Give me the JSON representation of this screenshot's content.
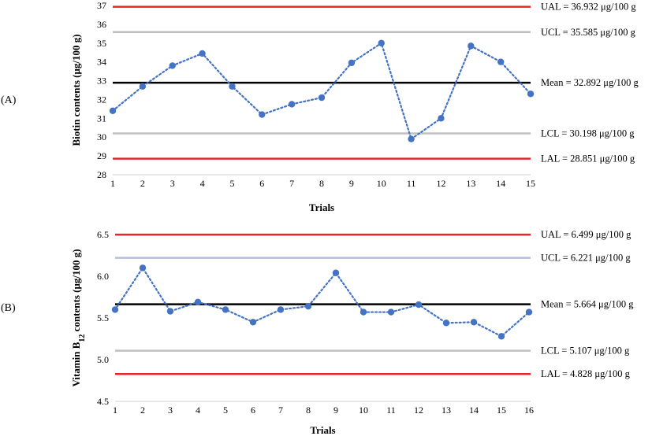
{
  "chart_data": [
    {
      "type": "line",
      "panel_label": "(A)",
      "xlabel": "Trials",
      "ylabel": "Biotin contents (μg/100 g)",
      "ylim": [
        28,
        37
      ],
      "yticks": [
        "28",
        "29",
        "30",
        "31",
        "32",
        "33",
        "34",
        "35",
        "36",
        "37"
      ],
      "x": [
        1,
        2,
        3,
        4,
        5,
        6,
        7,
        8,
        9,
        10,
        11,
        12,
        13,
        14,
        15
      ],
      "xticks": [
        "1",
        "2",
        "3",
        "4",
        "5",
        "6",
        "7",
        "8",
        "9",
        "10",
        "11",
        "12",
        "13",
        "14",
        "15"
      ],
      "values": [
        31.4,
        32.7,
        33.8,
        34.45,
        32.7,
        31.2,
        31.75,
        32.1,
        33.95,
        35.0,
        29.9,
        31.0,
        34.85,
        34.0,
        32.3
      ],
      "series_color": "#4472c4",
      "reference_lines": [
        {
          "label": "UAL = 36.932 μg/100 g",
          "value": 36.932,
          "color": "#e8262a"
        },
        {
          "label": "UCL = 35.585 μg/100 g",
          "value": 35.585,
          "color": "#bfbfbf"
        },
        {
          "label": "Mean = 32.892 μg/100 g",
          "value": 32.892,
          "color": "#000000"
        },
        {
          "label": "LCL = 30.198 μg/100 g",
          "value": 30.198,
          "color": "#bfbfbf"
        },
        {
          "label": "LAL = 28.851 μg/100 g",
          "value": 28.851,
          "color": "#e8262a"
        }
      ]
    },
    {
      "type": "line",
      "panel_label": "(B)",
      "xlabel": "Trials",
      "ylabel": {
        "prefix": "Vitamin B",
        "sub": "12",
        "suffix": " contents (μg/100 g)"
      },
      "ylim": [
        4.5,
        6.5
      ],
      "yticks": [
        "4.5",
        "5.0",
        "5.5",
        "6.0",
        "6.5"
      ],
      "x": [
        1,
        2,
        3,
        4,
        5,
        6,
        7,
        8,
        9,
        10,
        11,
        12,
        13,
        14,
        15,
        16
      ],
      "xticks": [
        "1",
        "2",
        "3",
        "4",
        "5",
        "6",
        "7",
        "8",
        "9",
        "10",
        "11",
        "12",
        "13",
        "14",
        "15",
        "16"
      ],
      "values": [
        5.6,
        6.1,
        5.58,
        5.69,
        5.6,
        5.45,
        5.6,
        5.64,
        6.04,
        5.57,
        5.57,
        5.66,
        5.44,
        5.45,
        5.28,
        5.57
      ],
      "series_color": "#4472c4",
      "reference_lines": [
        {
          "label": "UAL = 6.499 μg/100 g",
          "value": 6.499,
          "color": "#e8262a"
        },
        {
          "label": "UCL = 6.221 μg/100 g",
          "value": 6.221,
          "color": "#b4c0dc"
        },
        {
          "label": "Mean = 5.664 μg/100 g",
          "value": 5.664,
          "color": "#000000"
        },
        {
          "label": "LCL = 5.107 μg/100 g",
          "value": 5.107,
          "color": "#bfbfbf"
        },
        {
          "label": "LAL = 4.828 μg/100 g",
          "value": 4.828,
          "color": "#e8262a"
        }
      ]
    }
  ]
}
